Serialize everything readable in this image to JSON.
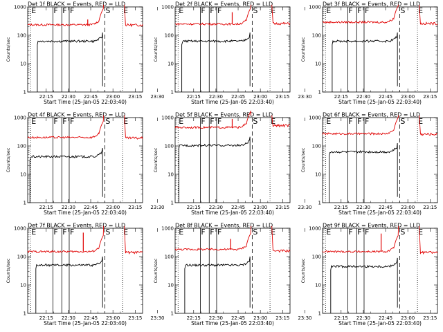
{
  "chart_data": {
    "type": "line",
    "series_names": [
      "Events",
      "LLD"
    ],
    "colors": {
      "events": "#000000",
      "lld": "#e00000"
    },
    "xlim_minutes": [
      22.5,
      100
    ],
    "x_ticks": [
      {
        "label": "22:15",
        "value": 35
      },
      {
        "label": "22:30",
        "value": 50
      },
      {
        "label": "22:45",
        "value": 65
      },
      {
        "label": "23:00",
        "value": 80
      },
      {
        "label": "23:15",
        "value": 95
      },
      {
        "label": "23:30",
        "value": 110
      }
    ],
    "ylim": [
      1,
      1000
    ],
    "y_scale": "log",
    "y_ticks": [
      "1",
      "10",
      "100",
      "1000"
    ],
    "ylabel": "Counts/sec",
    "xlabel": "Start Time (25-Jan-05 22:03:40)",
    "event_markers": [
      {
        "label": "E",
        "minute": 24.5,
        "style": "dotted"
      },
      {
        "label": "F",
        "minute": 39.5,
        "style": "solid"
      },
      {
        "label": "F",
        "minute": 45.5,
        "style": "solid"
      },
      {
        "label": "F",
        "minute": 50.5,
        "style": "solid"
      },
      {
        "label": "S",
        "minute": 74.5,
        "style": "dashed"
      },
      {
        "label": "E",
        "minute": 86.5,
        "style": "dotted"
      }
    ],
    "panels": [
      {
        "title": "Det 1f BLACK = Events, RED = LLD",
        "events_level": 62,
        "lld_level": 235,
        "events_start": 29,
        "lld_spike": {
          "minute": 63,
          "value": 360
        },
        "lld_after": 230
      },
      {
        "title": "Det 2f BLACK = Events, RED = LLD",
        "events_level": 62,
        "lld_level": 250,
        "events_start": 27,
        "lld_spike": {
          "minute": 61,
          "value": 650
        },
        "lld_after": 260
      },
      {
        "title": "Det 3f BLACK = Events, RED = LLD",
        "events_level": 62,
        "lld_level": 290,
        "events_start": 29,
        "lld_spike": null,
        "lld_after": 260
      },
      {
        "title": "Det 4f BLACK = Events, RED = LLD",
        "events_level": 42,
        "lld_level": 200,
        "events_start": 24,
        "lld_spike": null,
        "lld_after": 190
      },
      {
        "title": "Det 5f BLACK = Events, RED = LLD",
        "events_level": 105,
        "lld_level": 450,
        "events_start": 25,
        "lld_spike": {
          "minute": 61,
          "value": 900
        },
        "lld_after": 520
      },
      {
        "title": "Det 6f BLACK = Events, RED = LLD",
        "events_level": 62,
        "lld_level": 270,
        "events_start": 27,
        "lld_spike": null,
        "lld_after": 260
      },
      {
        "title": "Det 7f BLACK = Events, RED = LLD",
        "events_level": 50,
        "lld_level": 150,
        "events_start": 28,
        "lld_spike": {
          "minute": 60,
          "value": 700
        },
        "lld_after": 140
      },
      {
        "title": "Det 8f BLACK = Events, RED = LLD",
        "events_level": 50,
        "lld_level": 180,
        "events_start": 29,
        "lld_spike": {
          "minute": 60,
          "value": 420
        },
        "lld_after": 160
      },
      {
        "title": "Det 9f BLACK = Events, RED = LLD",
        "events_level": 45,
        "lld_level": 150,
        "events_start": 28,
        "lld_spike": {
          "minute": 62,
          "value": 650
        },
        "lld_after": 140
      }
    ]
  }
}
